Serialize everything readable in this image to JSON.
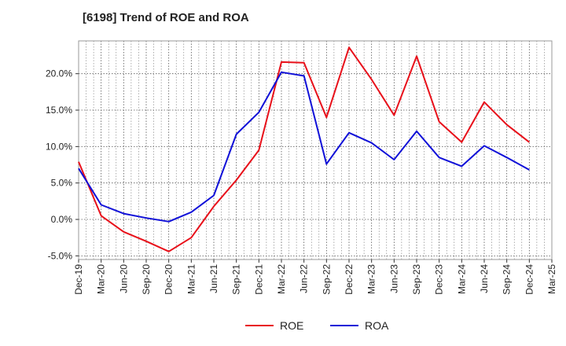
{
  "chart_data": {
    "type": "line",
    "title": "[6198]  Trend of ROE and ROA",
    "xlabel": "",
    "ylabel": "",
    "categories": [
      "Dec-19",
      "Mar-20",
      "Jun-20",
      "Sep-20",
      "Dec-20",
      "Mar-21",
      "Jun-21",
      "Sep-21",
      "Dec-21",
      "Mar-22",
      "Jun-22",
      "Sep-22",
      "Dec-22",
      "Mar-23",
      "Jun-23",
      "Sep-23",
      "Dec-23",
      "Mar-24",
      "Jun-24",
      "Sep-24",
      "Dec-24",
      "Mar-25"
    ],
    "ylim": [
      -5.5,
      24.5
    ],
    "yticks": [
      -5.0,
      0.0,
      5.0,
      10.0,
      15.0,
      20.0
    ],
    "ytick_labels": [
      "-5.0%",
      "0.0%",
      "5.0%",
      "10.0%",
      "15.0%",
      "20.0%"
    ],
    "grid": true,
    "legend_position": "bottom-center",
    "series": [
      {
        "name": "ROE",
        "color": "#e8101a",
        "values": [
          7.9,
          0.5,
          -1.7,
          -3.0,
          -4.4,
          -2.5,
          1.8,
          5.4,
          9.5,
          21.6,
          21.5,
          14.0,
          23.6,
          19.2,
          14.3,
          22.4,
          13.4,
          10.6,
          16.1,
          13.0,
          10.6,
          null
        ]
      },
      {
        "name": "ROA",
        "color": "#1010d8",
        "values": [
          7.0,
          2.0,
          0.8,
          0.2,
          -0.3,
          1.0,
          3.3,
          11.7,
          14.7,
          20.2,
          19.7,
          7.6,
          11.9,
          10.5,
          8.2,
          12.1,
          8.5,
          7.3,
          10.1,
          8.5,
          6.8,
          null
        ]
      }
    ]
  }
}
